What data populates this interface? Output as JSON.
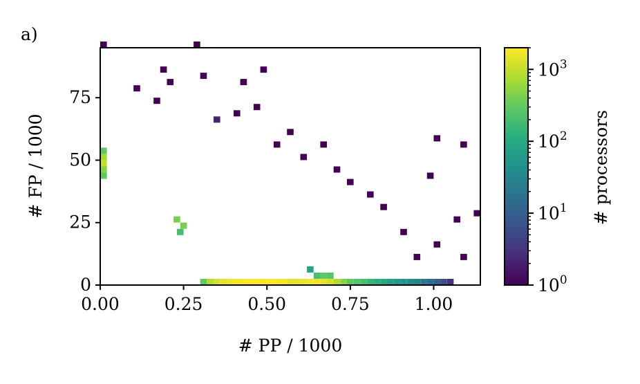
{
  "panel_label": "a)",
  "chart_data": {
    "type": "heatmap",
    "xlabel": "# PP / 1000",
    "ylabel": "# FP / 1000",
    "xlim": [
      0,
      1.14
    ],
    "ylim": [
      0,
      95
    ],
    "xticks": [
      {
        "value": 0,
        "label": "0.00"
      },
      {
        "value": 0.25,
        "label": "0.25"
      },
      {
        "value": 0.5,
        "label": "0.50"
      },
      {
        "value": 0.75,
        "label": "0.75"
      },
      {
        "value": 1.0,
        "label": "1.00"
      }
    ],
    "yticks": [
      {
        "value": 0,
        "label": "0"
      },
      {
        "value": 25,
        "label": "25"
      },
      {
        "value": 50,
        "label": "50"
      },
      {
        "value": 75,
        "label": "75"
      }
    ],
    "colorbar": {
      "label": "# processors",
      "scale": "log",
      "range": [
        1,
        2000
      ],
      "colormap": "viridis",
      "ticks": [
        {
          "value": 1,
          "label": "10",
          "exp": "0"
        },
        {
          "value": 10,
          "label": "10",
          "exp": "1"
        },
        {
          "value": 100,
          "label": "10",
          "exp": "2"
        },
        {
          "value": 1000,
          "label": "10",
          "exp": "3"
        }
      ]
    },
    "bin_width_x": 0.02,
    "bin_height_y": 2.5,
    "cells": [
      [
        0.31,
        0,
        300
      ],
      [
        0.33,
        0,
        800
      ],
      [
        0.35,
        0,
        1200
      ],
      [
        0.37,
        0,
        1500
      ],
      [
        0.39,
        0,
        1700
      ],
      [
        0.41,
        0,
        1800
      ],
      [
        0.43,
        0,
        1900
      ],
      [
        0.45,
        0,
        2000
      ],
      [
        0.47,
        0,
        2000
      ],
      [
        0.49,
        0,
        2000
      ],
      [
        0.51,
        0,
        2000
      ],
      [
        0.53,
        0,
        1900
      ],
      [
        0.55,
        0,
        1800
      ],
      [
        0.57,
        0,
        1500
      ],
      [
        0.59,
        0,
        1500
      ],
      [
        0.61,
        0,
        1600
      ],
      [
        0.63,
        0,
        1800
      ],
      [
        0.65,
        0,
        1700
      ],
      [
        0.67,
        0,
        1500
      ],
      [
        0.69,
        0,
        1200
      ],
      [
        0.71,
        0,
        800
      ],
      [
        0.73,
        0,
        500
      ],
      [
        0.75,
        0,
        300
      ],
      [
        0.77,
        0,
        250
      ],
      [
        0.79,
        0,
        200
      ],
      [
        0.81,
        0,
        150
      ],
      [
        0.83,
        0,
        120
      ],
      [
        0.85,
        0,
        90
      ],
      [
        0.87,
        0,
        70
      ],
      [
        0.89,
        0,
        60
      ],
      [
        0.91,
        0,
        50
      ],
      [
        0.93,
        0,
        40
      ],
      [
        0.95,
        0,
        30
      ],
      [
        0.97,
        0,
        20
      ],
      [
        0.99,
        0,
        15
      ],
      [
        1.01,
        0,
        10
      ],
      [
        1.03,
        0,
        6
      ],
      [
        1.05,
        0,
        3
      ],
      [
        0.01,
        47.5,
        1000
      ],
      [
        0.01,
        50,
        700
      ],
      [
        0.01,
        45,
        500
      ],
      [
        0.01,
        42.5,
        300
      ],
      [
        0.01,
        52.5,
        300
      ],
      [
        0.23,
        25,
        400
      ],
      [
        0.25,
        22.5,
        400
      ],
      [
        0.24,
        20,
        200
      ],
      [
        0.67,
        2.5,
        300
      ],
      [
        0.69,
        2.5,
        250
      ],
      [
        0.65,
        2.5,
        200
      ],
      [
        0.63,
        5,
        80
      ],
      [
        0.11,
        77.5,
        1
      ],
      [
        0.17,
        72.5,
        1
      ],
      [
        0.21,
        80,
        1
      ],
      [
        0.31,
        82.5,
        1
      ],
      [
        0.35,
        65,
        2
      ],
      [
        0.41,
        67.5,
        1
      ],
      [
        0.47,
        70,
        1
      ],
      [
        0.53,
        55,
        1
      ],
      [
        0.57,
        60,
        1
      ],
      [
        0.61,
        50,
        1
      ],
      [
        0.67,
        55,
        1
      ],
      [
        0.71,
        45,
        1
      ],
      [
        0.75,
        40,
        1
      ],
      [
        0.81,
        35,
        1
      ],
      [
        0.85,
        30,
        1
      ],
      [
        0.91,
        20,
        1
      ],
      [
        0.95,
        10,
        1
      ],
      [
        1.01,
        57.5,
        1
      ],
      [
        1.09,
        55,
        1
      ],
      [
        1.13,
        27.5,
        1
      ],
      [
        0.99,
        42.5,
        1
      ],
      [
        1.07,
        25,
        1
      ],
      [
        0.29,
        95,
        1
      ],
      [
        0.19,
        85,
        1
      ],
      [
        0.01,
        95,
        1
      ],
      [
        0.49,
        85,
        1
      ],
      [
        0.43,
        80,
        1
      ],
      [
        1.09,
        10,
        1
      ],
      [
        1.01,
        15,
        1
      ]
    ]
  }
}
